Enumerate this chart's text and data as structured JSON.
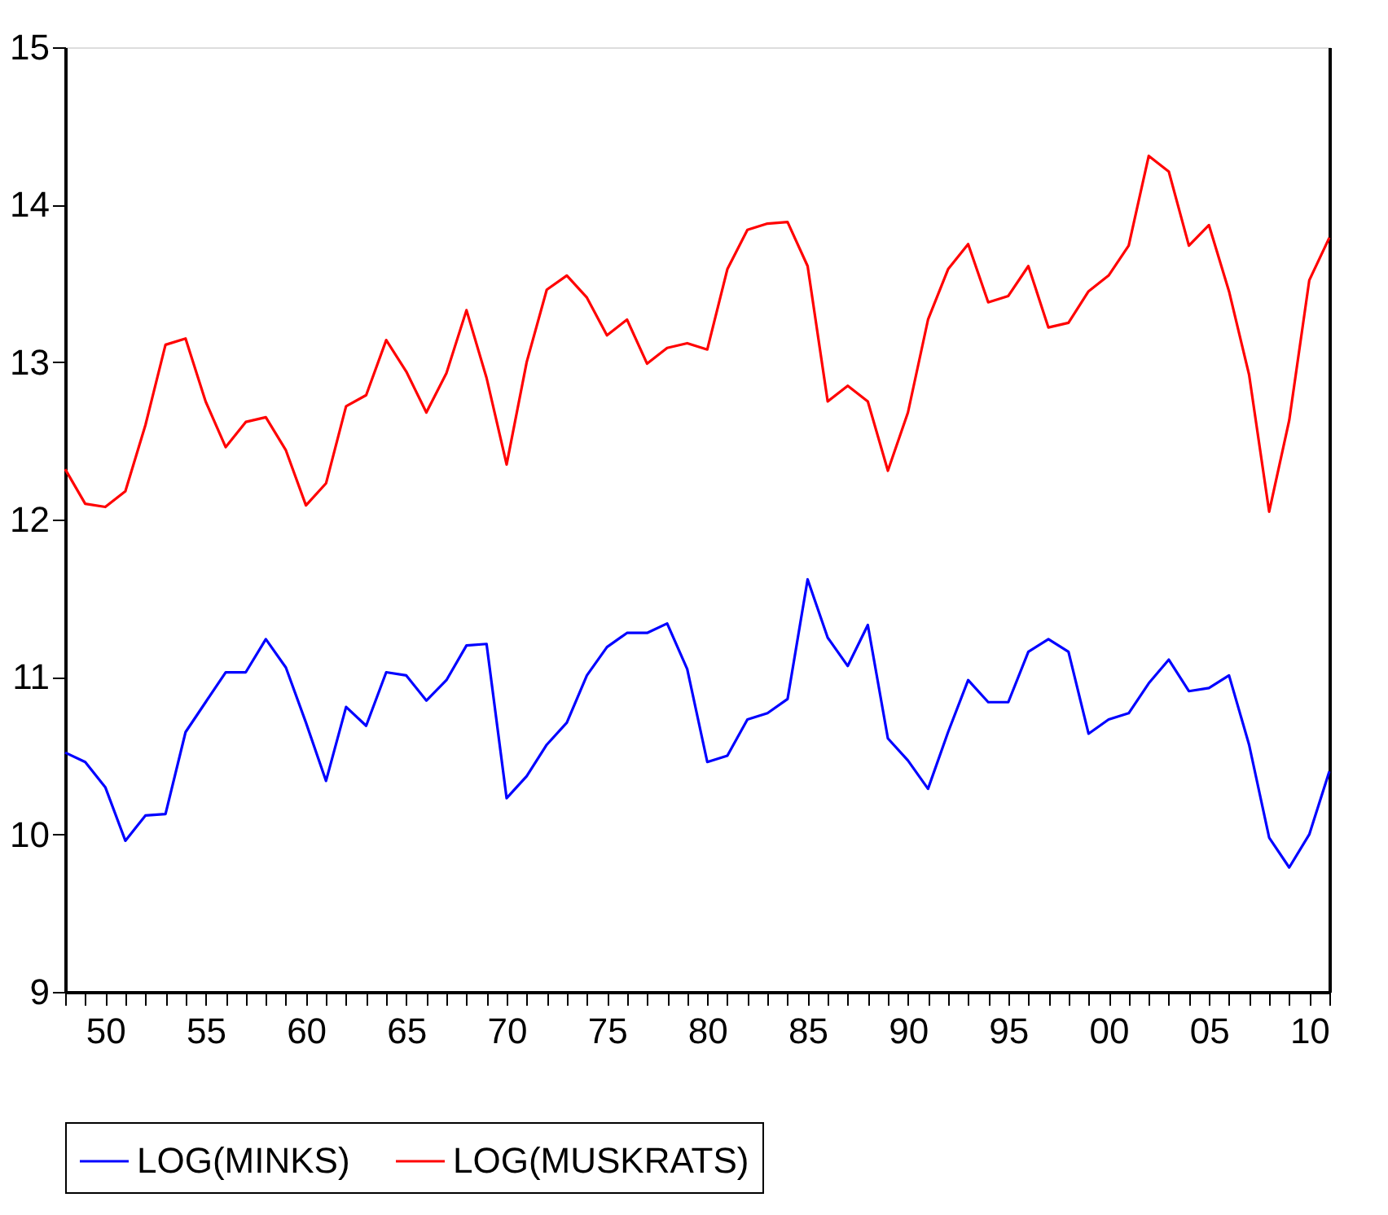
{
  "chart_data": {
    "type": "line",
    "x": [
      1948,
      1949,
      1950,
      1951,
      1952,
      1953,
      1954,
      1955,
      1956,
      1957,
      1958,
      1959,
      1960,
      1961,
      1962,
      1963,
      1964,
      1965,
      1966,
      1967,
      1968,
      1969,
      1970,
      1971,
      1972,
      1973,
      1974,
      1975,
      1976,
      1977,
      1978,
      1979,
      1980,
      1981,
      1982,
      1983,
      1984,
      1985,
      1986,
      1987,
      1988,
      1989,
      1990,
      1991,
      1992,
      1993,
      1994,
      1995,
      1996,
      1997,
      1998,
      1999,
      2000,
      2001,
      2002,
      2003,
      2004,
      2005,
      2006,
      2007,
      2008,
      2009,
      2010,
      2011
    ],
    "series": [
      {
        "name": "LOG(MINKS)",
        "color": "#0000ff",
        "values": [
          10.52,
          10.46,
          10.3,
          9.96,
          10.12,
          10.13,
          10.65,
          10.84,
          11.03,
          11.03,
          11.24,
          11.06,
          10.71,
          10.34,
          10.81,
          10.69,
          11.03,
          11.01,
          10.85,
          10.98,
          11.2,
          11.21,
          10.23,
          10.37,
          10.57,
          10.71,
          11.01,
          11.19,
          11.28,
          11.28,
          11.34,
          11.05,
          10.46,
          10.5,
          10.73,
          10.77,
          10.86,
          11.62,
          11.25,
          11.07,
          11.33,
          10.61,
          10.47,
          10.29,
          10.65,
          10.98,
          10.84,
          10.84,
          11.16,
          11.24,
          11.16,
          10.64,
          10.73,
          10.77,
          10.96,
          11.11,
          10.91,
          10.93,
          11.01,
          10.57,
          9.98,
          9.79,
          10.0,
          10.4
        ]
      },
      {
        "name": "LOG(MUSKRATS)",
        "color": "#ff0000",
        "values": [
          12.32,
          12.1,
          12.08,
          12.18,
          12.6,
          13.11,
          13.15,
          12.75,
          12.46,
          12.62,
          12.65,
          12.44,
          12.09,
          12.23,
          12.72,
          12.79,
          13.14,
          12.94,
          12.68,
          12.93,
          13.33,
          12.9,
          12.35,
          13.0,
          13.46,
          13.55,
          13.41,
          13.17,
          13.27,
          12.99,
          13.09,
          13.12,
          13.08,
          13.59,
          13.84,
          13.88,
          13.89,
          13.61,
          12.75,
          12.85,
          12.75,
          12.31,
          12.68,
          13.27,
          13.59,
          13.75,
          13.38,
          13.42,
          13.61,
          13.22,
          13.25,
          13.45,
          13.55,
          13.74,
          14.31,
          14.21,
          13.74,
          13.87,
          13.45,
          12.92,
          12.05,
          12.63,
          13.52,
          13.79
        ]
      }
    ],
    "xlim": [
      1948,
      2011
    ],
    "xticks": [
      {
        "value": 1948,
        "label": null
      },
      {
        "value": 1949,
        "label": null
      },
      {
        "value": 1950,
        "label": "50"
      },
      {
        "value": 1951,
        "label": null
      },
      {
        "value": 1952,
        "label": null
      },
      {
        "value": 1953,
        "label": null
      },
      {
        "value": 1954,
        "label": null
      },
      {
        "value": 1955,
        "label": "55"
      },
      {
        "value": 1956,
        "label": null
      },
      {
        "value": 1957,
        "label": null
      },
      {
        "value": 1958,
        "label": null
      },
      {
        "value": 1959,
        "label": null
      },
      {
        "value": 1960,
        "label": "60"
      },
      {
        "value": 1961,
        "label": null
      },
      {
        "value": 1962,
        "label": null
      },
      {
        "value": 1963,
        "label": null
      },
      {
        "value": 1964,
        "label": null
      },
      {
        "value": 1965,
        "label": "65"
      },
      {
        "value": 1966,
        "label": null
      },
      {
        "value": 1967,
        "label": null
      },
      {
        "value": 1968,
        "label": null
      },
      {
        "value": 1969,
        "label": null
      },
      {
        "value": 1970,
        "label": "70"
      },
      {
        "value": 1971,
        "label": null
      },
      {
        "value": 1972,
        "label": null
      },
      {
        "value": 1973,
        "label": null
      },
      {
        "value": 1974,
        "label": null
      },
      {
        "value": 1975,
        "label": "75"
      },
      {
        "value": 1976,
        "label": null
      },
      {
        "value": 1977,
        "label": null
      },
      {
        "value": 1978,
        "label": null
      },
      {
        "value": 1979,
        "label": null
      },
      {
        "value": 1980,
        "label": "80"
      },
      {
        "value": 1981,
        "label": null
      },
      {
        "value": 1982,
        "label": null
      },
      {
        "value": 1983,
        "label": null
      },
      {
        "value": 1984,
        "label": null
      },
      {
        "value": 1985,
        "label": "85"
      },
      {
        "value": 1986,
        "label": null
      },
      {
        "value": 1987,
        "label": null
      },
      {
        "value": 1988,
        "label": null
      },
      {
        "value": 1989,
        "label": null
      },
      {
        "value": 1990,
        "label": "90"
      },
      {
        "value": 1991,
        "label": null
      },
      {
        "value": 1992,
        "label": null
      },
      {
        "value": 1993,
        "label": null
      },
      {
        "value": 1994,
        "label": null
      },
      {
        "value": 1995,
        "label": "95"
      },
      {
        "value": 1996,
        "label": null
      },
      {
        "value": 1997,
        "label": null
      },
      {
        "value": 1998,
        "label": null
      },
      {
        "value": 1999,
        "label": null
      },
      {
        "value": 2000,
        "label": "00"
      },
      {
        "value": 2001,
        "label": null
      },
      {
        "value": 2002,
        "label": null
      },
      {
        "value": 2003,
        "label": null
      },
      {
        "value": 2004,
        "label": null
      },
      {
        "value": 2005,
        "label": "05"
      },
      {
        "value": 2006,
        "label": null
      },
      {
        "value": 2007,
        "label": null
      },
      {
        "value": 2008,
        "label": null
      },
      {
        "value": 2009,
        "label": null
      },
      {
        "value": 2010,
        "label": "10"
      },
      {
        "value": 2011,
        "label": null
      }
    ],
    "ylim": [
      9,
      15
    ],
    "yticks": [
      9,
      10,
      11,
      12,
      13,
      14,
      15
    ],
    "grid": false,
    "legend": "bottom",
    "marker": "none",
    "line_style": "solid"
  }
}
